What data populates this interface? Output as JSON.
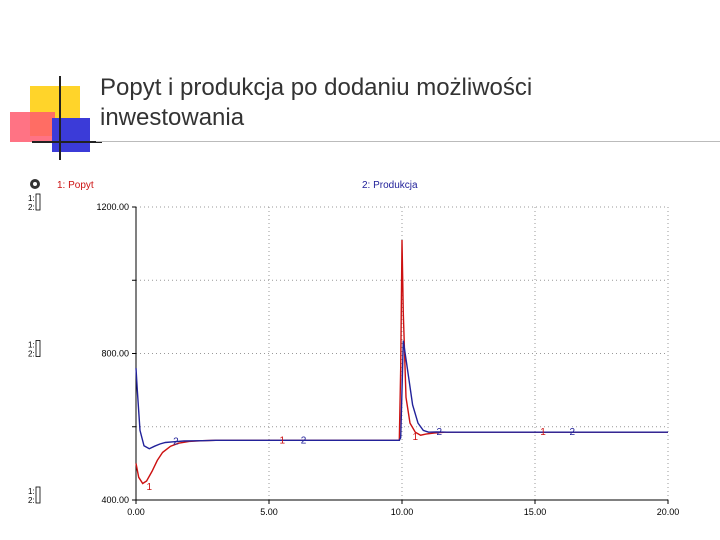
{
  "slide": {
    "title": "Popyt i produkcja po dodaniu możliwości inwestowania",
    "accent_colors": [
      "#ffd42a",
      "#ff5a6e",
      "#3b3bd8"
    ]
  },
  "chart_data": {
    "type": "line",
    "title": "",
    "xlabel": "",
    "ylabel": "",
    "xlim": [
      0,
      20
    ],
    "ylim": [
      400,
      1200
    ],
    "grid": true,
    "x_ticks": [
      "0.00",
      "5.00",
      "10.00",
      "15.00",
      "20.00"
    ],
    "y_ticks": [
      "400.00",
      "800.00",
      "1200.00"
    ],
    "y_scale_marks": [
      "1:",
      "2:"
    ],
    "legend": "top",
    "series": [
      {
        "name": "1: Popyt",
        "marker": "1",
        "color": "#cc1111",
        "x": [
          0,
          0.1,
          0.25,
          0.4,
          0.6,
          0.8,
          1.0,
          1.3,
          1.6,
          2.0,
          2.5,
          3.0,
          5.0,
          9.9,
          9.95,
          10.0,
          10.05,
          10.15,
          10.3,
          10.5,
          10.7,
          10.9,
          11.2,
          11.6,
          12.0,
          20.0
        ],
        "y": [
          500,
          462,
          445,
          452,
          478,
          508,
          530,
          547,
          555,
          560,
          562,
          563,
          563,
          563,
          760,
          1110,
          910,
          680,
          610,
          585,
          577,
          580,
          583,
          585,
          585,
          585
        ]
      },
      {
        "name": "2: Produkcja",
        "marker": "2",
        "color": "#22229a",
        "x": [
          0,
          0.05,
          0.15,
          0.3,
          0.5,
          0.7,
          0.9,
          1.1,
          1.4,
          1.8,
          2.5,
          3.0,
          5.0,
          9.9,
          9.95,
          10.0,
          10.05,
          10.2,
          10.4,
          10.6,
          10.8,
          11.0,
          11.3,
          11.7,
          12.0,
          20.0
        ],
        "y": [
          760,
          700,
          590,
          548,
          540,
          547,
          553,
          557,
          559,
          561,
          562,
          563,
          563,
          563,
          570,
          700,
          835,
          760,
          660,
          610,
          590,
          585,
          586,
          585,
          585,
          585
        ]
      }
    ]
  }
}
